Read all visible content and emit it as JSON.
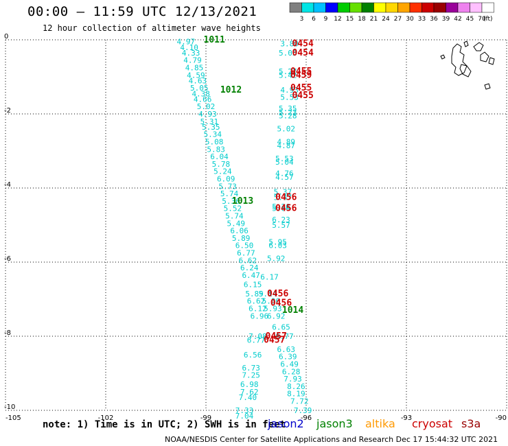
{
  "header": {
    "title": "00:00 – 11:59 UTC 12/13/2021",
    "subtitle": "12 hour collection of altimeter wave heights"
  },
  "colorbar": {
    "labels": [
      "3",
      "6",
      "9",
      "12",
      "15",
      "18",
      "21",
      "24",
      "27",
      "30",
      "33",
      "36",
      "39",
      "42",
      "45",
      "70"
    ],
    "unit": "(ft)",
    "colors": [
      "#808080",
      "#00e5e5",
      "#00c0ff",
      "#0000ff",
      "#00cc00",
      "#66e000",
      "#008000",
      "#ffff00",
      "#ffd700",
      "#ffa500",
      "#ff3000",
      "#cc0000",
      "#990000",
      "#990099",
      "#ee82ee",
      "#ffc0ff",
      "#ffffff"
    ]
  },
  "footer": {
    "note": "note: 1) Time is in UTC; 2) SWH is in feet",
    "credit": "NOAA/NESDIS Center for Satellite Applications and Research    Dec 17 15:44:32 UTC 2021",
    "satellites": [
      {
        "name": "jason2",
        "color": "#0000cc"
      },
      {
        "name": "jason3",
        "color": "#008000"
      },
      {
        "name": "altika",
        "color": "#ff9900"
      },
      {
        "name": "cryosat",
        "color": "#cc0000"
      },
      {
        "name": "s3a",
        "color": "#990000"
      }
    ]
  },
  "chart_data": {
    "type": "scatter",
    "title": "00:00 – 11:59 UTC 12/13/2021",
    "xlim": [
      -105,
      -90
    ],
    "ylim": [
      -10,
      0
    ],
    "x_ticks": [
      "-105",
      "-102",
      "-99",
      "-96",
      "-93",
      "-90"
    ],
    "y_ticks": [
      "0",
      "-2",
      "-4",
      "-6",
      "-8",
      "-10"
    ],
    "grid": true,
    "series": [
      {
        "name": "swh_track_A",
        "color": "#00cccc",
        "points": [
          {
            "x": -99.6,
            "y": -0.05,
            "label": "4.97"
          },
          {
            "x": -99.5,
            "y": -0.2,
            "label": "4.10"
          },
          {
            "x": -99.45,
            "y": -0.35,
            "label": "4.33"
          },
          {
            "x": -99.4,
            "y": -0.55,
            "label": "4.79"
          },
          {
            "x": -99.35,
            "y": -0.75,
            "label": "4.85"
          },
          {
            "x": -99.3,
            "y": -0.95,
            "label": "4.59"
          },
          {
            "x": -99.25,
            "y": -1.1,
            "label": "4.63"
          },
          {
            "x": -99.2,
            "y": -1.3,
            "label": "5.05"
          },
          {
            "x": -99.15,
            "y": -1.45,
            "label": "4.38"
          },
          {
            "x": -99.1,
            "y": -1.6,
            "label": "4.66"
          },
          {
            "x": -99.0,
            "y": -1.8,
            "label": "5.02"
          },
          {
            "x": -98.95,
            "y": -2.0,
            "label": "4.93"
          },
          {
            "x": -98.9,
            "y": -2.2,
            "label": "5.31"
          },
          {
            "x": -98.85,
            "y": -2.35,
            "label": "5.35"
          },
          {
            "x": -98.8,
            "y": -2.55,
            "label": "5.34"
          },
          {
            "x": -98.75,
            "y": -2.75,
            "label": "5.08"
          },
          {
            "x": -98.7,
            "y": -2.95,
            "label": "5.83"
          },
          {
            "x": -98.6,
            "y": -3.15,
            "label": "6.04"
          },
          {
            "x": -98.55,
            "y": -3.35,
            "label": "5.78"
          },
          {
            "x": -98.5,
            "y": -3.55,
            "label": "5.24"
          },
          {
            "x": -98.4,
            "y": -3.75,
            "label": "6.09"
          },
          {
            "x": -98.35,
            "y": -3.95,
            "label": "5.73"
          },
          {
            "x": -98.3,
            "y": -4.15,
            "label": "5.74"
          },
          {
            "x": -98.25,
            "y": -4.35,
            "label": "5.36"
          },
          {
            "x": -98.2,
            "y": -4.55,
            "label": "5.52"
          },
          {
            "x": -98.15,
            "y": -4.75,
            "label": "5.74"
          },
          {
            "x": -98.1,
            "y": -4.95,
            "label": "5.49"
          },
          {
            "x": -98.0,
            "y": -5.15,
            "label": "6.06"
          },
          {
            "x": -97.95,
            "y": -5.35,
            "label": "5.89"
          },
          {
            "x": -97.85,
            "y": -5.55,
            "label": "6.50"
          },
          {
            "x": -97.8,
            "y": -5.75,
            "label": "6.77"
          },
          {
            "x": -97.75,
            "y": -5.95,
            "label": "6.62"
          },
          {
            "x": -97.7,
            "y": -6.15,
            "label": "6.24"
          },
          {
            "x": -97.65,
            "y": -6.35,
            "label": "6.47"
          },
          {
            "x": -97.6,
            "y": -6.6,
            "label": "6.15"
          },
          {
            "x": -97.55,
            "y": -6.85,
            "label": "5.89"
          },
          {
            "x": -97.5,
            "y": -7.05,
            "label": "6.62"
          },
          {
            "x": -97.45,
            "y": -7.25,
            "label": "6.12"
          },
          {
            "x": -97.4,
            "y": -7.45,
            "label": "6.96"
          },
          {
            "x": -97.45,
            "y": -8.0,
            "label": "7.08"
          },
          {
            "x": -97.5,
            "y": -8.1,
            "label": "6.77"
          },
          {
            "x": -97.6,
            "y": -8.5,
            "label": "6.56"
          },
          {
            "x": -97.65,
            "y": -8.85,
            "label": "6.73"
          },
          {
            "x": -97.65,
            "y": -9.05,
            "label": "7.25"
          },
          {
            "x": -97.7,
            "y": -9.3,
            "label": "6.98"
          },
          {
            "x": -97.7,
            "y": -9.5,
            "label": "7.62"
          },
          {
            "x": -97.75,
            "y": -9.65,
            "label": "7.40"
          },
          {
            "x": -97.85,
            "y": -10.0,
            "label": "7.33"
          },
          {
            "x": -97.85,
            "y": -10.15,
            "label": "7.04"
          }
        ]
      },
      {
        "name": "swh_track_B",
        "color": "#00cccc",
        "points": [
          {
            "x": -96.5,
            "y": -0.1,
            "label": "3.80"
          },
          {
            "x": -96.55,
            "y": -0.35,
            "label": "5.03"
          },
          {
            "x": -96.55,
            "y": -0.85,
            "label": "5.27"
          },
          {
            "x": -96.55,
            "y": -0.95,
            "label": "5.42"
          },
          {
            "x": -96.5,
            "y": -1.35,
            "label": "4.93"
          },
          {
            "x": -96.5,
            "y": -1.55,
            "label": "5.53"
          },
          {
            "x": -96.55,
            "y": -1.85,
            "label": "5.35"
          },
          {
            "x": -96.55,
            "y": -1.95,
            "label": "5.23"
          },
          {
            "x": -96.55,
            "y": -2.05,
            "label": "5.28"
          },
          {
            "x": -96.6,
            "y": -2.4,
            "label": "5.02"
          },
          {
            "x": -96.6,
            "y": -2.75,
            "label": "4.89"
          },
          {
            "x": -96.6,
            "y": -2.85,
            "label": "4.87"
          },
          {
            "x": -96.65,
            "y": -3.2,
            "label": "5.53"
          },
          {
            "x": -96.65,
            "y": -3.3,
            "label": "5.04"
          },
          {
            "x": -96.65,
            "y": -3.6,
            "label": "4.76"
          },
          {
            "x": -96.65,
            "y": -3.7,
            "label": "4.57"
          },
          {
            "x": -96.7,
            "y": -4.1,
            "label": "5.37"
          },
          {
            "x": -96.7,
            "y": -4.25,
            "label": "5.47"
          },
          {
            "x": -96.75,
            "y": -4.5,
            "label": "5.26"
          },
          {
            "x": -96.75,
            "y": -4.55,
            "label": "5.00"
          },
          {
            "x": -96.75,
            "y": -4.85,
            "label": "6.23"
          },
          {
            "x": -96.75,
            "y": -5.0,
            "label": "5.57"
          },
          {
            "x": -96.85,
            "y": -5.45,
            "label": "5.95"
          },
          {
            "x": -96.85,
            "y": -5.55,
            "label": "6.03"
          },
          {
            "x": -96.9,
            "y": -5.9,
            "label": "5.92"
          },
          {
            "x": -97.1,
            "y": -6.4,
            "label": "6.17"
          },
          {
            "x": -97.15,
            "y": -6.85,
            "label": "5.14"
          },
          {
            "x": -97.05,
            "y": -7.05,
            "label": "5.36"
          },
          {
            "x": -97.0,
            "y": -7.25,
            "label": "5.93"
          },
          {
            "x": -96.9,
            "y": -7.45,
            "label": "6.92"
          },
          {
            "x": -96.75,
            "y": -7.75,
            "label": "6.65"
          },
          {
            "x": -96.65,
            "y": -8.0,
            "label": "6.77"
          },
          {
            "x": -96.6,
            "y": -8.35,
            "label": "6.63"
          },
          {
            "x": -96.55,
            "y": -8.55,
            "label": "6.39"
          },
          {
            "x": -96.5,
            "y": -8.75,
            "label": "6.49"
          },
          {
            "x": -96.45,
            "y": -8.95,
            "label": "6.28"
          },
          {
            "x": -96.4,
            "y": -9.15,
            "label": "7.93"
          },
          {
            "x": -96.3,
            "y": -9.35,
            "label": "8.26"
          },
          {
            "x": -96.3,
            "y": -9.55,
            "label": "8.19"
          },
          {
            "x": -96.2,
            "y": -9.75,
            "label": "7.72"
          },
          {
            "x": -96.1,
            "y": -10.0,
            "label": "7.39"
          }
        ]
      },
      {
        "name": "jason3_time",
        "color": "#008000",
        "points": [
          {
            "x": -98.75,
            "y": 0.0,
            "label": "1011"
          },
          {
            "x": -98.25,
            "y": -1.35,
            "label": "1012"
          },
          {
            "x": -97.9,
            "y": -4.35,
            "label": "1013"
          },
          {
            "x": -96.4,
            "y": -7.3,
            "label": "1014"
          }
        ]
      },
      {
        "name": "cryosat_time",
        "color": "#cc0000",
        "points": [
          {
            "x": -96.1,
            "y": -0.1,
            "label": "0454"
          },
          {
            "x": -96.1,
            "y": -0.35,
            "label": "0454"
          },
          {
            "x": -96.15,
            "y": -0.85,
            "label": "0455"
          },
          {
            "x": -96.15,
            "y": -0.95,
            "label": "0459"
          },
          {
            "x": -96.15,
            "y": -1.3,
            "label": "0455"
          },
          {
            "x": -96.1,
            "y": -1.5,
            "label": "0455"
          },
          {
            "x": -96.6,
            "y": -4.25,
            "label": "0456"
          },
          {
            "x": -96.6,
            "y": -4.55,
            "label": "0456"
          },
          {
            "x": -96.85,
            "y": -6.85,
            "label": "0456"
          },
          {
            "x": -96.75,
            "y": -7.1,
            "label": "0456"
          },
          {
            "x": -96.9,
            "y": -8.0,
            "label": "0457"
          },
          {
            "x": -96.95,
            "y": -8.1,
            "label": "0457"
          }
        ]
      }
    ]
  }
}
